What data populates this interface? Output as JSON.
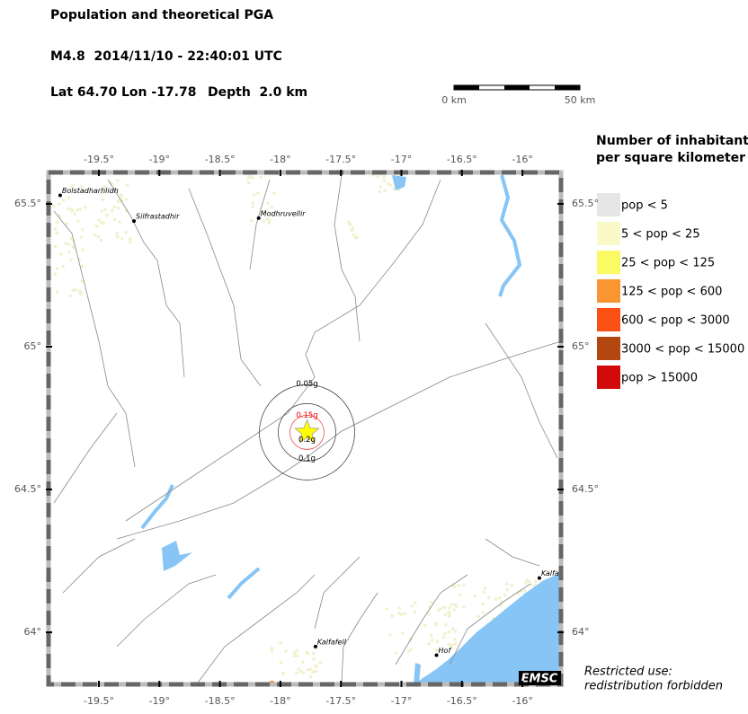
{
  "header": {
    "title": "Population and theoretical PGA",
    "event": "M4.8  2014/11/10 - 22:40:01 UTC",
    "lat": {
      "value": 64.7,
      "label": "Lat 64.70"
    },
    "lon": {
      "value": -17.78,
      "label": "Lon -17.78"
    },
    "depth": "Depth  2.0 km"
  },
  "scale_bar": {
    "start": "0 km",
    "end": "50 km"
  },
  "map": {
    "lonticks": [
      {
        "value": -19.5,
        "label": "-19.5°"
      },
      {
        "value": -19,
        "label": "-19°"
      },
      {
        "value": -18.5,
        "label": "-18.5°"
      },
      {
        "value": -18,
        "label": "-18°"
      },
      {
        "value": -17.5,
        "label": "-17.5°"
      },
      {
        "value": -17,
        "label": "-17°"
      },
      {
        "value": -16.5,
        "label": "-16.5°"
      },
      {
        "value": -16,
        "label": "-16°"
      }
    ],
    "latticks": [
      {
        "value": 65.5,
        "label": "65.5°"
      },
      {
        "value": 65,
        "label": "65°"
      },
      {
        "value": 64.5,
        "label": "64.5°"
      },
      {
        "value": 64,
        "label": "64°"
      }
    ],
    "places": [
      {
        "name": "Bolstadharhlidh",
        "lat": 65.53,
        "lon": -19.82
      },
      {
        "name": "Silfrastadhir",
        "lat": 65.44,
        "lon": -19.21
      },
      {
        "name": "Modhruvellir",
        "lat": 65.45,
        "lon": -18.18
      },
      {
        "name": "Kalfafell",
        "lat": 63.95,
        "lon": -17.71
      },
      {
        "name": "Hof",
        "lat": 63.92,
        "lon": -16.71
      },
      {
        "name": "Kalfa",
        "lat": 64.19,
        "lon": -15.86
      }
    ],
    "pga_labels": [
      "0.05g",
      "0.15g",
      "0.2g",
      "0.1g"
    ],
    "brand": "EMSC"
  },
  "legend": {
    "title": [
      "Number of inhabitants",
      "per square kilometer"
    ],
    "items": [
      {
        "label": "pop < 5",
        "color": "#e6e6e6"
      },
      {
        "label": "5 < pop < 25",
        "color": "#fafac8"
      },
      {
        "label": "25 < pop < 125",
        "color": "#fafa64"
      },
      {
        "label": "125 < pop < 600",
        "color": "#fa9632"
      },
      {
        "label": "600 < pop < 3000",
        "color": "#fa5014"
      },
      {
        "label": "3000 < pop < 15000",
        "color": "#b4460f"
      },
      {
        "label": "pop > 15000",
        "color": "#d20a0a"
      }
    ]
  },
  "footer": [
    "Restricted use:",
    "redistribution forbidden"
  ]
}
